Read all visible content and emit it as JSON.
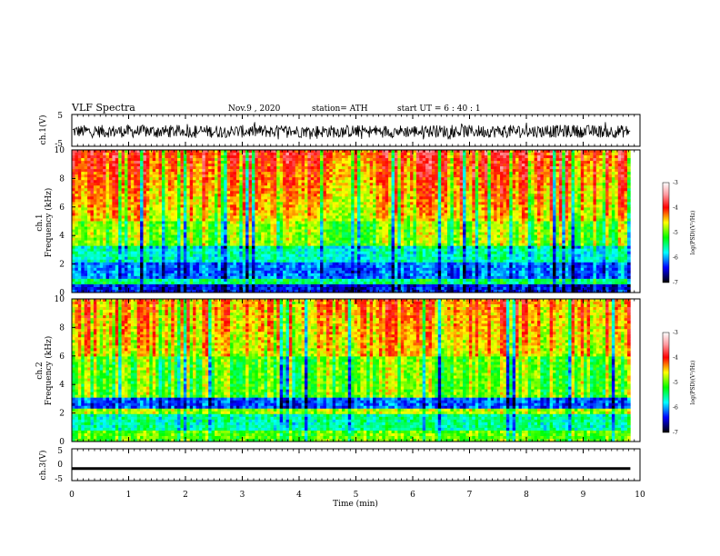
{
  "header": {
    "title": "VLF Spectra",
    "date": "Nov.9 , 2020",
    "station": "station= ATH",
    "start": "start UT = 6 : 40 : 1"
  },
  "chart_data": [
    {
      "type": "line",
      "title": "",
      "ylabel": "ch.1(V)",
      "ylim": [
        -5,
        5
      ],
      "yticks": [
        "5",
        "-5"
      ],
      "description_free": true,
      "series": [
        {
          "values_range": [
            -2.5,
            2.3
          ],
          "baseline": -0.3
        }
      ]
    },
    {
      "type": "heatmap",
      "ylabel": "ch.1\nFrequency (kHz)",
      "ylabel_lines": [
        "ch.1",
        "Frequency (kHz)"
      ],
      "ylim": [
        0,
        10
      ],
      "yticks": [
        "0",
        "2",
        "4",
        "6",
        "8",
        "10"
      ],
      "colorbar": {
        "label": "log(PSD)(V²/Hz)",
        "range": [
          -7,
          -3
        ],
        "ticks": [
          "-3",
          "-4",
          "-5",
          "-6",
          "-7"
        ]
      }
    },
    {
      "type": "heatmap",
      "ylabel_lines": [
        "ch.2",
        "Frequency (kHz)"
      ],
      "ylim": [
        0,
        10
      ],
      "yticks": [
        "0",
        "2",
        "4",
        "6",
        "8",
        "10"
      ],
      "colorbar": {
        "label": "log(PSD)(V²/Hz)",
        "range": [
          -7,
          -3
        ],
        "ticks": [
          "-3",
          "-4",
          "-5",
          "-6",
          "-7"
        ]
      }
    },
    {
      "type": "line",
      "ylabel": "ch.3(V)",
      "ylim": [
        -5,
        5
      ],
      "yticks": [
        "5",
        "0",
        "-5"
      ],
      "series": [
        {
          "baseline": -1.2
        }
      ]
    }
  ],
  "xaxis": {
    "label": "Time (min)",
    "range": [
      0,
      10
    ],
    "ticks": [
      "0",
      "1",
      "2",
      "3",
      "4",
      "5",
      "6",
      "7",
      "8",
      "9",
      "10"
    ],
    "data_end": 9.83
  }
}
